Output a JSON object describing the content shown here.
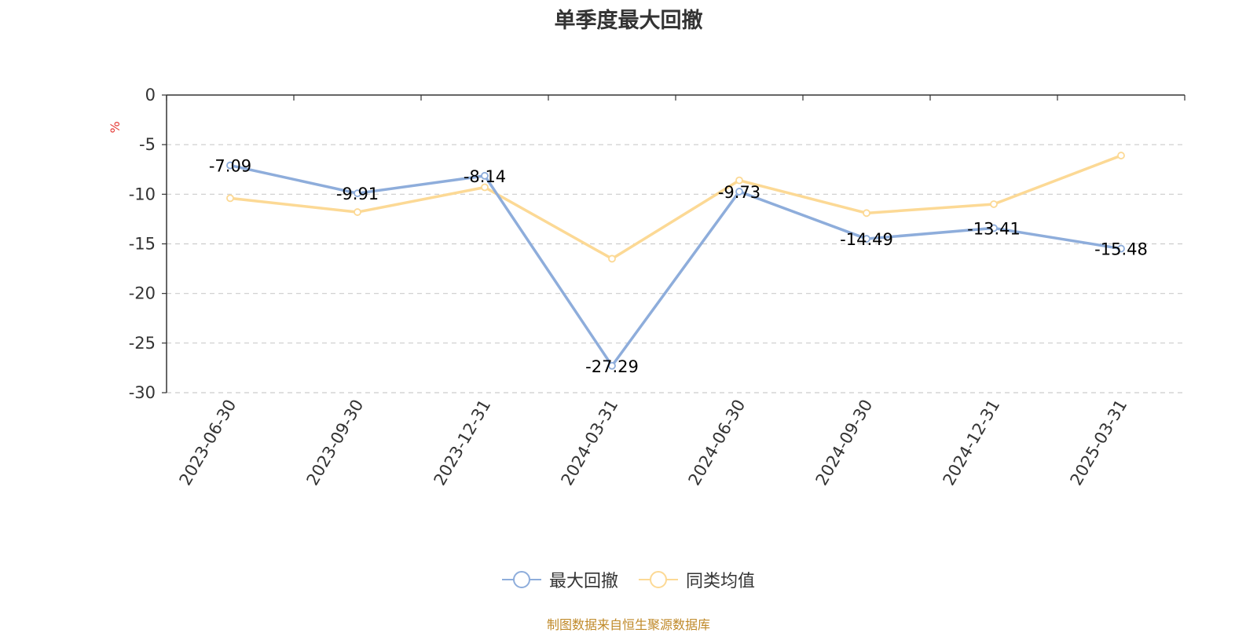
{
  "chart_data": {
    "type": "line",
    "title": "单季度最大回撤",
    "ylabel": "%",
    "x": [
      "2023-06-30",
      "2023-09-30",
      "2023-12-31",
      "2024-03-31",
      "2024-06-30",
      "2024-09-30",
      "2024-12-31",
      "2025-03-31"
    ],
    "ylim": [
      -30,
      0
    ],
    "yticks": [
      "0",
      "-5",
      "-10",
      "-15",
      "-20",
      "-25",
      "-30"
    ],
    "grid": "dashed horizontal",
    "legend_position": "bottom-center",
    "series": [
      {
        "name": "最大回撤",
        "color": "#8eaddb",
        "values": [
          -7.09,
          -9.91,
          -8.14,
          -27.29,
          -9.73,
          -14.49,
          -13.41,
          -15.48
        ],
        "labels": [
          "-7.09",
          "-9.91",
          "-8.14",
          "-27.29",
          "-9.73",
          "-14.49",
          "-13.41",
          "-15.48"
        ]
      },
      {
        "name": "同类均值",
        "color": "#fcd995",
        "values": [
          -10.4,
          -11.8,
          -9.3,
          -16.5,
          -8.6,
          -11.9,
          -11.0,
          -6.1
        ]
      }
    ]
  },
  "source_note": "制图数据来自恒生聚源数据库"
}
